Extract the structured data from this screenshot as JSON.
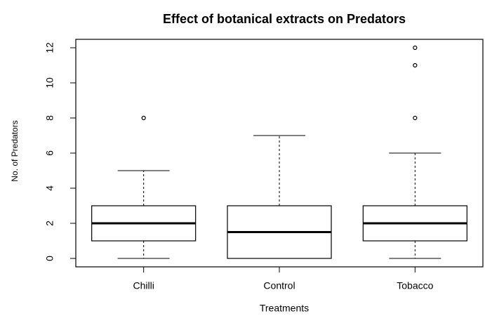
{
  "chart_data": {
    "type": "boxplot",
    "title": "Effect of botanical extracts on Predators",
    "x_label": "Treatments",
    "y_label": "No. of Predators",
    "categories": [
      "Chilli",
      "Control",
      "Tobacco"
    ],
    "boxes": [
      {
        "min": 0,
        "q1": 1,
        "median": 2,
        "q3": 3,
        "max": 5,
        "outliers": [
          8
        ]
      },
      {
        "min": 0,
        "q1": 0,
        "median": 1.5,
        "q3": 3,
        "max": 7,
        "outliers": []
      },
      {
        "min": 0,
        "q1": 1,
        "median": 2,
        "q3": 3,
        "max": 6,
        "outliers": [
          8,
          11,
          12
        ]
      }
    ],
    "ylim": [
      -0.48,
      12.48
    ],
    "yticks": [
      0,
      2,
      4,
      6,
      8,
      10,
      12
    ],
    "color": "#000000"
  }
}
